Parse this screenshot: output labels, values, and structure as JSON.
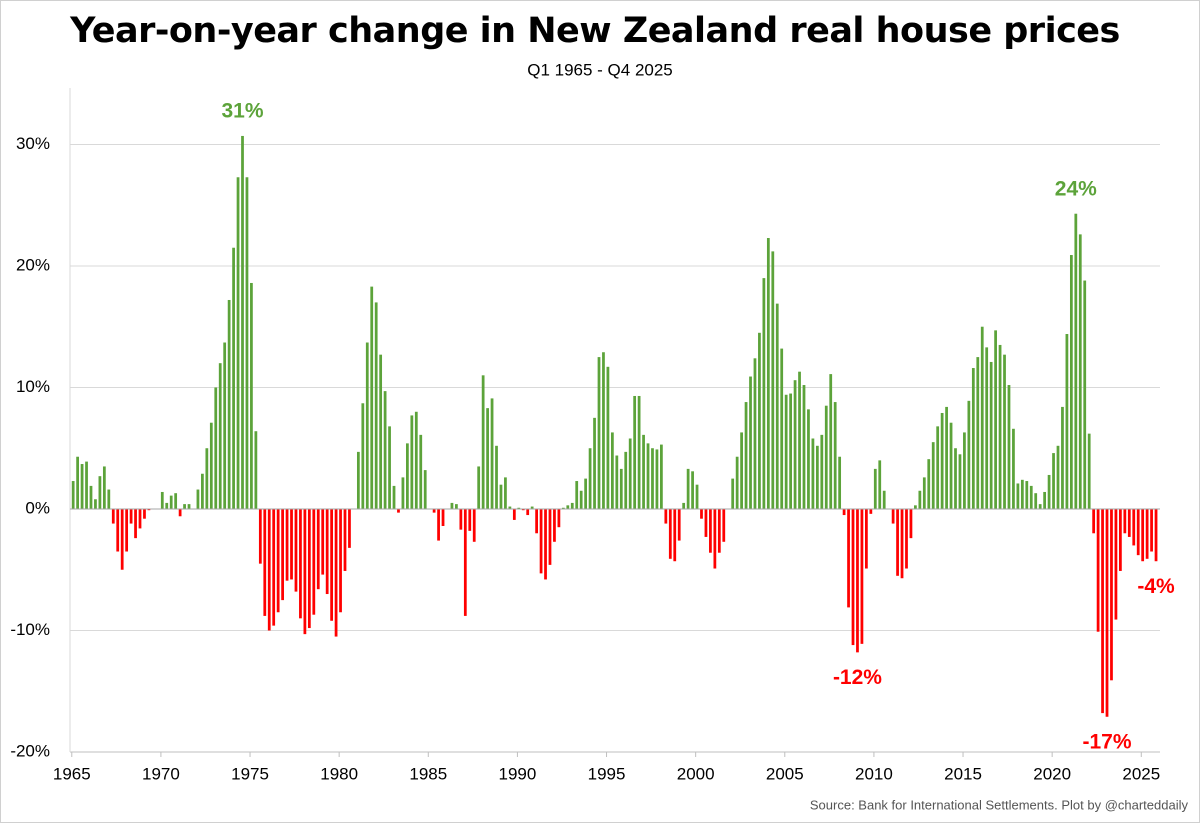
{
  "chart_data": {
    "type": "bar",
    "title": "Year-on-year change in New Zealand real house prices",
    "subtitle": "Q1 1965 - Q4 2025",
    "source": "Source: Bank for International Settlements.  Plot by @charteddaily",
    "color_positive": "#5ca33a",
    "color_negative": "#ff0000",
    "grid": true,
    "xlim": [
      1964.9,
      2026.05
    ],
    "xticks": [
      1965,
      1970,
      1975,
      1980,
      1985,
      1990,
      1995,
      2000,
      2005,
      2010,
      2015,
      2020,
      2025
    ],
    "ylim": [
      -20,
      33
    ],
    "yticks": [
      {
        "value": -20,
        "label": "-20%"
      },
      {
        "value": -10,
        "label": "-10%"
      },
      {
        "value": 0,
        "label": "0%"
      },
      {
        "value": 10,
        "label": "10%"
      },
      {
        "value": 20,
        "label": "20%"
      },
      {
        "value": 30,
        "label": "30%"
      }
    ],
    "x": [
      1965,
      1965.25,
      1965.5,
      1965.75,
      1966,
      1966.25,
      1966.5,
      1966.75,
      1967,
      1967.25,
      1967.5,
      1967.75,
      1968,
      1968.25,
      1968.5,
      1968.75,
      1969,
      1969.25,
      1969.5,
      1969.75,
      1970,
      1970.25,
      1970.5,
      1970.75,
      1971,
      1971.25,
      1971.5,
      1971.75,
      1972,
      1972.25,
      1972.5,
      1972.75,
      1973,
      1973.25,
      1973.5,
      1973.75,
      1974,
      1974.25,
      1974.5,
      1974.75,
      1975,
      1975.25,
      1975.5,
      1975.75,
      1976,
      1976.25,
      1976.5,
      1976.75,
      1977,
      1977.25,
      1977.5,
      1977.75,
      1978,
      1978.25,
      1978.5,
      1978.75,
      1979,
      1979.25,
      1979.5,
      1979.75,
      1980,
      1980.25,
      1980.5,
      1980.75,
      1981,
      1981.25,
      1981.5,
      1981.75,
      1982,
      1982.25,
      1982.5,
      1982.75,
      1983,
      1983.25,
      1983.5,
      1983.75,
      1984,
      1984.25,
      1984.5,
      1984.75,
      1985,
      1985.25,
      1985.5,
      1985.75,
      1986,
      1986.25,
      1986.5,
      1986.75,
      1987,
      1987.25,
      1987.5,
      1987.75,
      1988,
      1988.25,
      1988.5,
      1988.75,
      1989,
      1989.25,
      1989.5,
      1989.75,
      1990,
      1990.25,
      1990.5,
      1990.75,
      1991,
      1991.25,
      1991.5,
      1991.75,
      1992,
      1992.25,
      1992.5,
      1992.75,
      1993,
      1993.25,
      1993.5,
      1993.75,
      1994,
      1994.25,
      1994.5,
      1994.75,
      1995,
      1995.25,
      1995.5,
      1995.75,
      1996,
      1996.25,
      1996.5,
      1996.75,
      1997,
      1997.25,
      1997.5,
      1997.75,
      1998,
      1998.25,
      1998.5,
      1998.75,
      1999,
      1999.25,
      1999.5,
      1999.75,
      2000,
      2000.25,
      2000.5,
      2000.75,
      2001,
      2001.25,
      2001.5,
      2001.75,
      2002,
      2002.25,
      2002.5,
      2002.75,
      2003,
      2003.25,
      2003.5,
      2003.75,
      2004,
      2004.25,
      2004.5,
      2004.75,
      2005,
      2005.25,
      2005.5,
      2005.75,
      2006,
      2006.25,
      2006.5,
      2006.75,
      2007,
      2007.25,
      2007.5,
      2007.75,
      2008,
      2008.25,
      2008.5,
      2008.75,
      2009,
      2009.25,
      2009.5,
      2009.75,
      2010,
      2010.25,
      2010.5,
      2010.75,
      2011,
      2011.25,
      2011.5,
      2011.75,
      2012,
      2012.25,
      2012.5,
      2012.75,
      2013,
      2013.25,
      2013.5,
      2013.75,
      2014,
      2014.25,
      2014.5,
      2014.75,
      2015,
      2015.25,
      2015.5,
      2015.75,
      2016,
      2016.25,
      2016.5,
      2016.75,
      2017,
      2017.25,
      2017.5,
      2017.75,
      2018,
      2018.25,
      2018.5,
      2018.75,
      2019,
      2019.25,
      2019.5,
      2019.75,
      2020,
      2020.25,
      2020.5,
      2020.75,
      2021,
      2021.25,
      2021.5,
      2021.75,
      2022,
      2022.25,
      2022.5,
      2022.75,
      2023,
      2023.25,
      2023.5,
      2023.75,
      2024,
      2024.25,
      2024.5,
      2024.75,
      2025,
      2025.25,
      2025.5,
      2025.75
    ],
    "values": [
      2.3,
      4.3,
      3.7,
      3.9,
      1.9,
      0.8,
      2.7,
      3.5,
      1.6,
      -1.2,
      -3.5,
      -5.0,
      -3.5,
      -1.2,
      -2.4,
      -1.6,
      -0.8,
      -0.1,
      0.0,
      0.0,
      1.4,
      0.5,
      1.1,
      1.3,
      -0.6,
      0.4,
      0.4,
      0.0,
      1.6,
      2.9,
      5.0,
      7.1,
      10.0,
      12.0,
      13.7,
      17.2,
      21.5,
      27.3,
      30.7,
      27.3,
      18.6,
      6.4,
      -4.5,
      -8.8,
      -10.0,
      -9.6,
      -8.5,
      -7.5,
      -5.9,
      -5.8,
      -6.8,
      -9.0,
      -10.3,
      -9.8,
      -8.7,
      -6.6,
      -5.4,
      -7.0,
      -9.2,
      -10.5,
      -8.5,
      -5.1,
      -3.2,
      0.0,
      4.7,
      8.7,
      13.7,
      18.3,
      17.0,
      12.7,
      9.7,
      6.8,
      1.9,
      -0.3,
      2.6,
      5.4,
      7.7,
      8.0,
      6.1,
      3.2,
      0.0,
      -0.3,
      -2.6,
      -1.4,
      0.0,
      0.5,
      0.4,
      -1.7,
      -8.8,
      -1.8,
      -2.7,
      3.5,
      11.0,
      8.3,
      9.1,
      5.2,
      2.0,
      2.6,
      0.2,
      -0.9,
      0.1,
      -0.1,
      -0.5,
      0.2,
      -2.0,
      -5.3,
      -5.8,
      -4.6,
      -2.7,
      -1.5,
      0.1,
      0.3,
      0.5,
      2.3,
      1.5,
      2.5,
      5.0,
      7.5,
      12.5,
      12.9,
      11.7,
      6.3,
      4.4,
      3.3,
      4.7,
      5.8,
      9.3,
      9.3,
      6.1,
      5.4,
      5.0,
      4.9,
      5.3,
      -1.2,
      -4.1,
      -4.3,
      -2.6,
      0.5,
      3.3,
      3.1,
      2.0,
      -0.8,
      -2.3,
      -3.6,
      -4.9,
      -3.6,
      -2.7,
      0.0,
      2.5,
      4.3,
      6.3,
      8.8,
      10.9,
      12.4,
      14.5,
      19.0,
      22.3,
      21.2,
      16.9,
      13.2,
      9.4,
      9.5,
      10.6,
      11.3,
      10.2,
      8.2,
      5.8,
      5.2,
      6.1,
      8.5,
      11.1,
      8.8,
      4.3,
      -0.5,
      -8.1,
      -11.2,
      -11.8,
      -11.1,
      -4.9,
      -0.4,
      3.3,
      4.0,
      1.5,
      0.0,
      -1.2,
      -5.5,
      -5.7,
      -4.9,
      -2.4,
      0.3,
      1.5,
      2.6,
      4.1,
      5.5,
      6.8,
      7.9,
      8.4,
      7.1,
      5.0,
      4.5,
      6.3,
      8.9,
      11.6,
      12.5,
      15.0,
      13.3,
      12.1,
      14.7,
      13.5,
      12.7,
      10.2,
      6.6,
      2.1,
      2.4,
      2.3,
      1.9,
      1.3,
      0.4,
      1.4,
      2.8,
      4.6,
      5.2,
      8.4,
      14.4,
      20.9,
      24.3,
      22.6,
      18.8,
      6.2,
      -2.0,
      -10.1,
      -16.8,
      -17.1,
      -14.1,
      -9.1,
      -5.1,
      -2.0,
      -2.3,
      -3.0,
      -3.8,
      -4.3,
      -4.1,
      -3.5,
      -4.3
    ],
    "value_labels": [
      null,
      null,
      null,
      null,
      null,
      null,
      null,
      null,
      null,
      null,
      null,
      null,
      null,
      null,
      null,
      null,
      null,
      null,
      null,
      null,
      null,
      null,
      null,
      null,
      null,
      null,
      null,
      null,
      null,
      null,
      null,
      null,
      null,
      null,
      null,
      null,
      null,
      null,
      "31%",
      null,
      null,
      null,
      null,
      null,
      null,
      null,
      null,
      null,
      null,
      null,
      null,
      null,
      null,
      null,
      null,
      null,
      null,
      null,
      null,
      null,
      null,
      null,
      null,
      null,
      null,
      null,
      null,
      null,
      null,
      null,
      null,
      null,
      null,
      null,
      null,
      null,
      null,
      null,
      null,
      null,
      null,
      null,
      null,
      null,
      null,
      null,
      null,
      null,
      null,
      null,
      null,
      null,
      null,
      null,
      null,
      null,
      null,
      null,
      null,
      null,
      null,
      null,
      null,
      null,
      null,
      null,
      null,
      null,
      null,
      null,
      null,
      null,
      null,
      null,
      null,
      null,
      null,
      null,
      null,
      null,
      null,
      null,
      null,
      null,
      null,
      null,
      null,
      null,
      null,
      null,
      null,
      null,
      null,
      null,
      null,
      null,
      null,
      null,
      null,
      null,
      null,
      null,
      null,
      null,
      null,
      null,
      null,
      null,
      null,
      null,
      null,
      null,
      null,
      null,
      null,
      null,
      null,
      null,
      null,
      null,
      null,
      null,
      null,
      null,
      null,
      null,
      null,
      null,
      null,
      null,
      null,
      null,
      null,
      null,
      null,
      null,
      "-12%",
      null,
      null,
      null,
      null,
      null,
      null,
      null,
      null,
      null,
      null,
      null,
      null,
      null,
      null,
      null,
      null,
      null,
      null,
      null,
      null,
      null,
      null,
      null,
      null,
      null,
      null,
      null,
      null,
      null,
      null,
      null,
      null,
      null,
      null,
      null,
      null,
      null,
      null,
      null,
      null,
      null,
      null,
      null,
      null,
      null,
      null,
      null,
      null,
      "24%",
      null,
      null,
      null,
      null,
      null,
      null,
      "-17%",
      null,
      null,
      null,
      null,
      null,
      null,
      null,
      null,
      null,
      null,
      "-4%"
    ]
  }
}
